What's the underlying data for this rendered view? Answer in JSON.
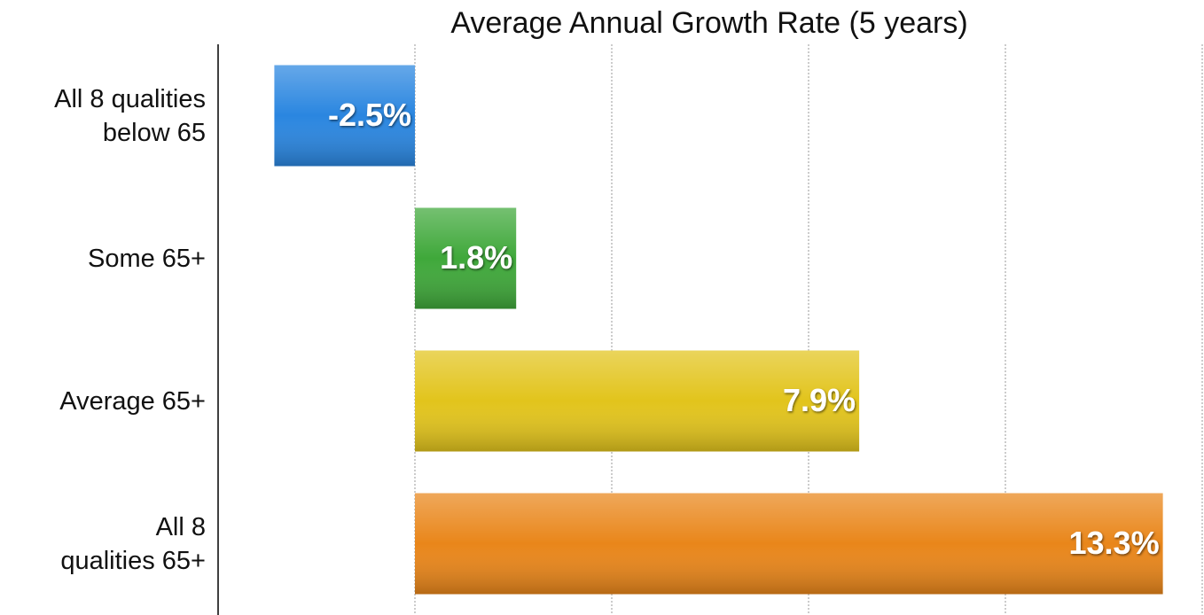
{
  "chart_data": {
    "type": "barh",
    "title": "Average Annual Growth Rate (5 years)",
    "categories": [
      "All 8 qualities\nbelow 65",
      "Some 65+",
      "Average 65+",
      "All 8\nqualities 65+"
    ],
    "values": [
      -2.5,
      1.8,
      7.9,
      13.3
    ],
    "value_labels": [
      "-2.5%",
      "1.8%",
      "7.9%",
      "13.3%"
    ],
    "colors": [
      "#2a86e0",
      "#3fa83a",
      "#e2c41c",
      "#e9861a"
    ],
    "xlim": [
      -3.5,
      14
    ],
    "xticks": [
      -3.5,
      0,
      3.5,
      7,
      10.5,
      14
    ],
    "grid": true
  }
}
